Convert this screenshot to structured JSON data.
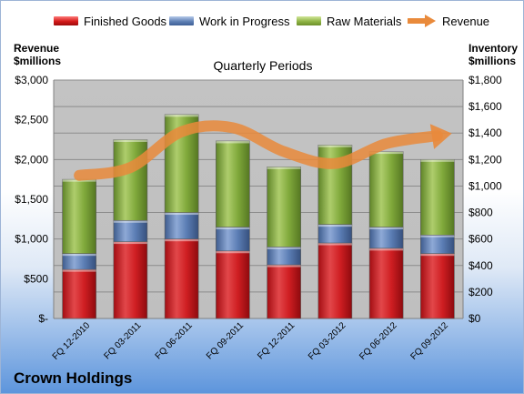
{
  "legend": {
    "finished_goods": "Finished Goods",
    "work_in_progress": "Work in Progress",
    "raw_materials": "Raw Materials",
    "revenue": "Revenue"
  },
  "axis_headers": {
    "left_line1": "Revenue",
    "left_line2": "$millions",
    "right_line1": "Inventory",
    "right_line2": "$millions"
  },
  "subtitle": "Quarterly Periods",
  "company": "Crown Holdings",
  "colors": {
    "finished_goods": "#c8161d",
    "work_in_progress": "#5b7db4",
    "raw_materials": "#7fa83a",
    "revenue": "#e98a3b",
    "plot_background": "#c0c0c0"
  },
  "chart_data": {
    "type": "bar",
    "stacked": true,
    "categories": [
      "FQ 12-2010",
      "FQ 03-2011",
      "FQ 06-2011",
      "FQ 09-2011",
      "FQ 12-2011",
      "FQ 03-2012",
      "FQ 06-2012",
      "FQ 09-2012"
    ],
    "series": [
      {
        "name": "Finished Goods",
        "axis": "right",
        "values": [
          370,
          580,
          600,
          510,
          405,
          570,
          530,
          490
        ]
      },
      {
        "name": "Work in Progress",
        "axis": "right",
        "values": [
          120,
          160,
          200,
          180,
          135,
          140,
          160,
          140
        ]
      },
      {
        "name": "Raw Materials",
        "axis": "right",
        "values": [
          560,
          610,
          740,
          650,
          605,
          600,
          570,
          570
        ]
      }
    ],
    "line_series": {
      "name": "Revenue",
      "axis": "left",
      "values": [
        1800,
        1900,
        2350,
        2400,
        2100,
        1950,
        2200,
        2300
      ]
    },
    "left_axis": {
      "ylim": [
        0,
        3000
      ],
      "ticks": [
        "$-",
        "$500",
        "$1,000",
        "$1,500",
        "$2,000",
        "$2,500",
        "$3,000"
      ]
    },
    "right_axis": {
      "ylim": [
        0,
        1800
      ],
      "ticks": [
        "$0",
        "$200",
        "$400",
        "$600",
        "$800",
        "$1,000",
        "$1,200",
        "$1,400",
        "$1,600",
        "$1,800"
      ]
    },
    "grid": true,
    "legend": "top"
  }
}
